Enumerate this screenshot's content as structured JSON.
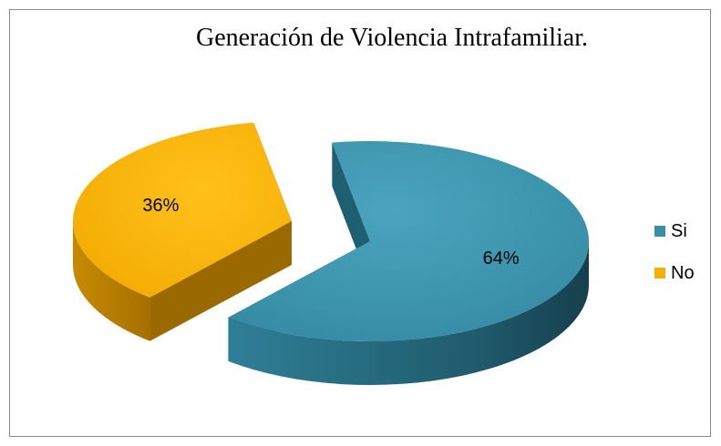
{
  "chart_data": {
    "type": "pie",
    "title": "Generación de Violencia Intrafamiliar.",
    "categories": [
      "Si",
      "No"
    ],
    "values": [
      64,
      36
    ],
    "labels": [
      "64%",
      "36%"
    ],
    "colors": [
      "#3a8ea7",
      "#f6b106"
    ],
    "legend_position": "right",
    "style": "3d-exploded"
  }
}
